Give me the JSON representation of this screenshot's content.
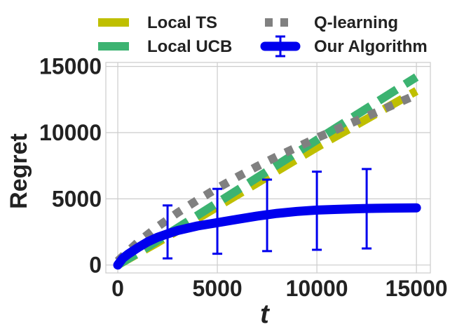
{
  "chart_data": {
    "type": "line",
    "xlabel": "t",
    "ylabel": "Regret",
    "xlim": [
      -600,
      15700
    ],
    "ylim": [
      -600,
      15300
    ],
    "xticks": [
      0,
      5000,
      10000,
      15000
    ],
    "yticks": [
      0,
      5000,
      10000,
      15000
    ],
    "grid": true,
    "legend_position": "top",
    "series": [
      {
        "name": "Local TS",
        "color": "#bfbf00",
        "style": "dashed",
        "x": [
          0,
          1000,
          2000,
          3000,
          4000,
          5000,
          6000,
          7000,
          8000,
          9000,
          10000,
          11000,
          12000,
          13000,
          14000,
          15000
        ],
        "y": [
          0,
          850,
          1700,
          2600,
          3500,
          4400,
          5300,
          6200,
          7100,
          8000,
          8900,
          9750,
          10600,
          11450,
          12300,
          13150
        ]
      },
      {
        "name": "Local UCB",
        "color": "#3cb371",
        "style": "dashed",
        "x": [
          0,
          1000,
          2000,
          3000,
          4000,
          5000,
          6000,
          7000,
          8000,
          9000,
          10000,
          11000,
          12000,
          13000,
          14000,
          15000
        ],
        "y": [
          0,
          900,
          1850,
          2800,
          3750,
          4700,
          5650,
          6600,
          7550,
          8500,
          9450,
          10400,
          11350,
          12300,
          13250,
          14200
        ]
      },
      {
        "name": "Q-learning",
        "color": "#808080",
        "style": "dotted",
        "x": [
          0,
          1000,
          2000,
          3000,
          4000,
          5000,
          6000,
          7000,
          8000,
          9000,
          10000,
          11000,
          12000,
          13000,
          14000,
          15000
        ],
        "y": [
          300,
          1700,
          2900,
          3950,
          4900,
          5800,
          6650,
          7450,
          8200,
          8900,
          9600,
          10250,
          10900,
          11550,
          12200,
          12850
        ]
      },
      {
        "name": "Our Algorithm",
        "color": "#0000ee",
        "style": "solid",
        "x": [
          0,
          250,
          500,
          1000,
          1500,
          2000,
          2500,
          3000,
          4000,
          5000,
          6000,
          7000,
          7500,
          8000,
          9000,
          10000,
          11000,
          12000,
          12500,
          13000,
          14000,
          15000
        ],
        "y": [
          0,
          500,
          800,
          1300,
          1750,
          2100,
          2350,
          2600,
          2950,
          3200,
          3450,
          3700,
          3800,
          3900,
          4050,
          4150,
          4200,
          4250,
          4270,
          4280,
          4300,
          4320
        ],
        "errorbars": {
          "x": [
            2500,
            5000,
            7500,
            10000,
            12500
          ],
          "y": [
            2500,
            3300,
            3750,
            4100,
            4250
          ],
          "err": [
            2000,
            2450,
            2700,
            2950,
            3000
          ]
        }
      }
    ]
  }
}
